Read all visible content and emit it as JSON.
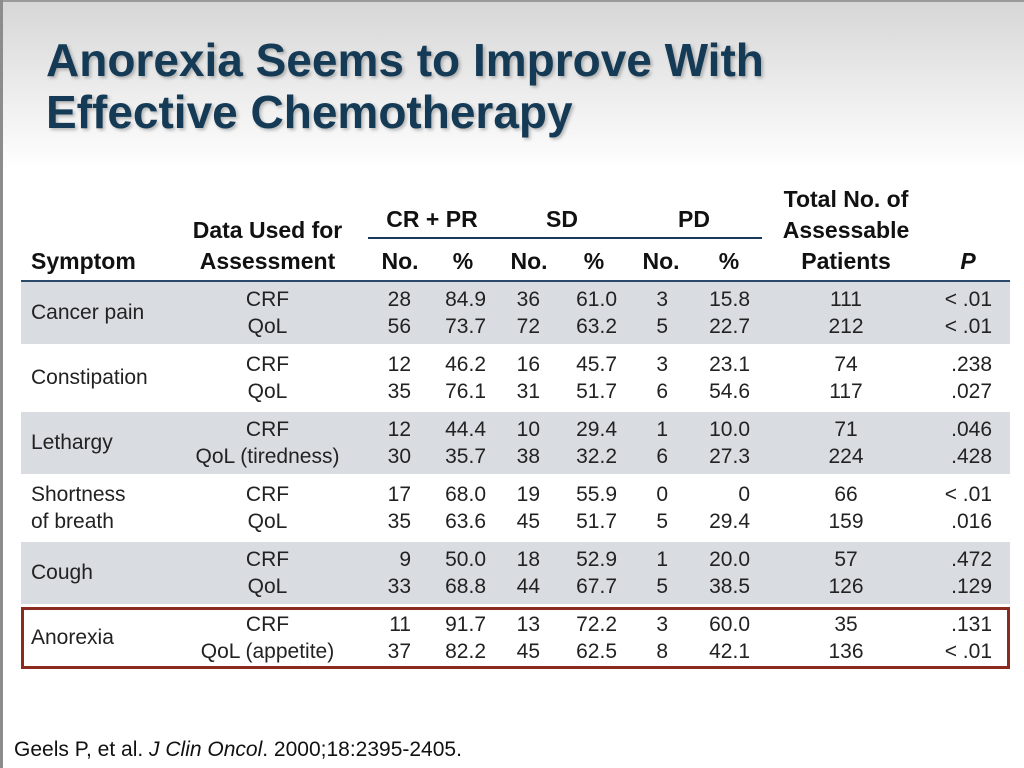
{
  "slide": {
    "title_line1": "Anorexia Seems to Improve With",
    "title_line2": "Effective Chemotherapy"
  },
  "table": {
    "headers": {
      "symptom": "Symptom",
      "data_used_line1": "Data Used for",
      "data_used_line2": "Assessment",
      "group_crpr": "CR + PR",
      "group_sd": "SD",
      "group_pd": "PD",
      "no": "No.",
      "pct": "%",
      "total_line1": "Total No. of",
      "total_line2": "Assessable",
      "total_line3": "Patients",
      "p": "P"
    },
    "rows": [
      {
        "symptom_line1": "Cancer pain",
        "symptom_line2": "",
        "data_used": [
          "CRF",
          "QoL"
        ],
        "crpr_no": [
          "28",
          "56"
        ],
        "crpr_pct": [
          "84.9",
          "73.7"
        ],
        "sd_no": [
          "36",
          "72"
        ],
        "sd_pct": [
          "61.0",
          "63.2"
        ],
        "pd_no": [
          "3",
          "5"
        ],
        "pd_pct": [
          "15.8",
          "22.7"
        ],
        "total": [
          "111",
          "212"
        ],
        "p": [
          "< .01",
          "< .01"
        ]
      },
      {
        "symptom_line1": "Constipation",
        "symptom_line2": "",
        "data_used": [
          "CRF",
          "QoL"
        ],
        "crpr_no": [
          "12",
          "35"
        ],
        "crpr_pct": [
          "46.2",
          "76.1"
        ],
        "sd_no": [
          "16",
          "31"
        ],
        "sd_pct": [
          "45.7",
          "51.7"
        ],
        "pd_no": [
          "3",
          "6"
        ],
        "pd_pct": [
          "23.1",
          "54.6"
        ],
        "total": [
          "74",
          "117"
        ],
        "p": [
          ".238",
          ".027"
        ]
      },
      {
        "symptom_line1": "Lethargy",
        "symptom_line2": "",
        "data_used": [
          "CRF",
          "QoL (tiredness)"
        ],
        "crpr_no": [
          "12",
          "30"
        ],
        "crpr_pct": [
          "44.4",
          "35.7"
        ],
        "sd_no": [
          "10",
          "38"
        ],
        "sd_pct": [
          "29.4",
          "32.2"
        ],
        "pd_no": [
          "1",
          "6"
        ],
        "pd_pct": [
          "10.0",
          "27.3"
        ],
        "total": [
          "71",
          "224"
        ],
        "p": [
          ".046",
          ".428"
        ]
      },
      {
        "symptom_line1": "Shortness",
        "symptom_line2": "of breath",
        "data_used": [
          "CRF",
          "QoL"
        ],
        "crpr_no": [
          "17",
          "35"
        ],
        "crpr_pct": [
          "68.0",
          "63.6"
        ],
        "sd_no": [
          "19",
          "45"
        ],
        "sd_pct": [
          "55.9",
          "51.7"
        ],
        "pd_no": [
          "0",
          "5"
        ],
        "pd_pct": [
          "0",
          "29.4"
        ],
        "total": [
          "66",
          "159"
        ],
        "p": [
          "< .01",
          ".016"
        ]
      },
      {
        "symptom_line1": "Cough",
        "symptom_line2": "",
        "data_used": [
          "CRF",
          "QoL"
        ],
        "crpr_no": [
          "9",
          "33"
        ],
        "crpr_pct": [
          "50.0",
          "68.8"
        ],
        "sd_no": [
          "18",
          "44"
        ],
        "sd_pct": [
          "52.9",
          "67.7"
        ],
        "pd_no": [
          "1",
          "5"
        ],
        "pd_pct": [
          "20.0",
          "38.5"
        ],
        "total": [
          "57",
          "126"
        ],
        "p": [
          ".472",
          ".129"
        ]
      },
      {
        "symptom_line1": "Anorexia",
        "symptom_line2": "",
        "data_used": [
          "CRF",
          "QoL (appetite)"
        ],
        "crpr_no": [
          "11",
          "37"
        ],
        "crpr_pct": [
          "91.7",
          "82.2"
        ],
        "sd_no": [
          "13",
          "45"
        ],
        "sd_pct": [
          "72.2",
          "62.5"
        ],
        "pd_no": [
          "3",
          "8"
        ],
        "pd_pct": [
          "60.0",
          "42.1"
        ],
        "total": [
          "35",
          "136"
        ],
        "p": [
          ".131",
          "< .01"
        ]
      }
    ]
  },
  "reference": {
    "authors": "Geels P, et al.",
    "journal": "J Clin Oncol",
    "details": ". 2000;18:2395-2405."
  },
  "colors": {
    "title": "#153a55",
    "row_shade": "#d9dde1",
    "highlight_border": "#8b2a1e",
    "header_rule": "#2a4a6a"
  }
}
